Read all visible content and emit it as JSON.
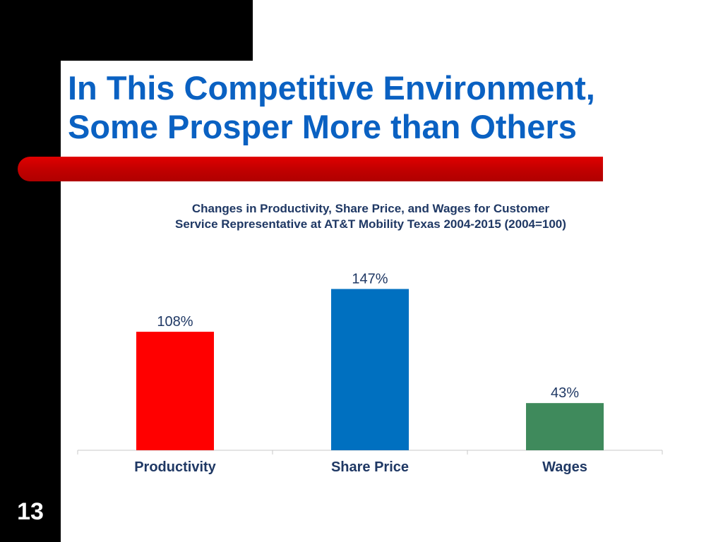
{
  "slide": {
    "title_line1": "In This Competitive Environment,",
    "title_line2": "Some Prosper More than Others",
    "page_number": "13"
  },
  "colors": {
    "title": "#0a61c2",
    "accent_bar": "#c00000",
    "chart_text": "#1f3864"
  },
  "chart_data": {
    "type": "bar",
    "title_line1": "Changes in Productivity, Share Price, and Wages for Customer",
    "title_line2": "Service Representative at AT&T Mobility Texas 2004-2015 (2004=100)",
    "categories": [
      "Productivity",
      "Share Price",
      "Wages"
    ],
    "values": [
      108,
      147,
      43
    ],
    "labels": [
      "108%",
      "147%",
      "43%"
    ],
    "colors": [
      "#ff0000",
      "#0070c0",
      "#3f8a5c"
    ],
    "ylim": [
      0,
      220
    ],
    "grid": false,
    "legend": "none"
  }
}
